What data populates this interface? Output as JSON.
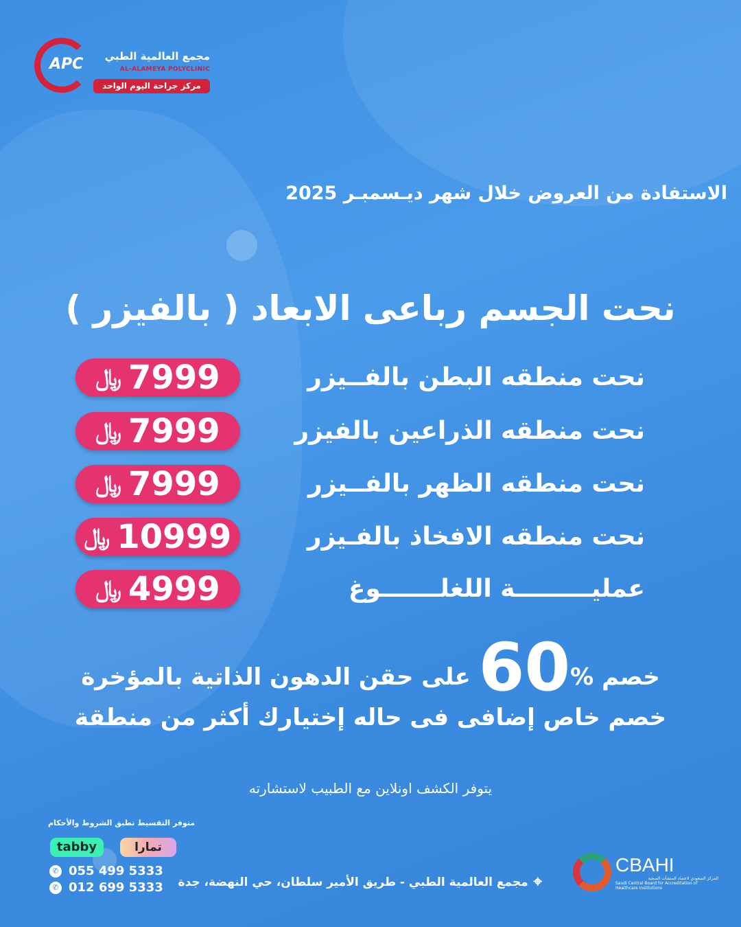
{
  "logo": {
    "abbr": "APC",
    "name_ar": "مجمع العالمية الطبي",
    "name_en": "AL-ALAMEYA POLYCLINIC",
    "tagline": "مركز جراحة اليوم الواحد"
  },
  "offer_period": "الاستفادة من العروض خلال شهر ديـسمبـر 2025",
  "heading": "نحت الجسم رباعى الابعاد ( بالفيزر )",
  "currency_symbol": "﷼",
  "offers": [
    {
      "label": "نحت منطقه البطن بالفــيزر",
      "price": "7999"
    },
    {
      "label": "نحت منطقه الذراعين بالفيزر",
      "price": "7999"
    },
    {
      "label": "نحت منطقه الظهر بالفــيزر",
      "price": "7999"
    },
    {
      "label": "نحت منطقه الافخاذ بالفـيزر",
      "price": "10999"
    },
    {
      "label": "عمليـــــــــة اللغلـــــــوغ",
      "price": "4999"
    }
  ],
  "discount": {
    "prefix": "خصم",
    "percent": "60",
    "percent_sign": "%",
    "suffix": "على حقن الدهون الذاتية بالمؤخرة",
    "extra": "خصم خاص إضافى فى حاله إختيارك أكثر من منطقة"
  },
  "online_note": "يتوفر الكشف اونلاين مع الطبيب لاستشارته",
  "installments": {
    "note": "متوفر التقسيط تطبق الشروط والأحكام",
    "tabby": "tabby",
    "tamara": "تمارا"
  },
  "phones": [
    "055 499 5333",
    "012 699 5333"
  ],
  "address": "مجمع العالمية الطبي - طريق الأمير سلطان، حي النهضة، جدة",
  "cbahi": {
    "name": "CBAHI",
    "sub_ar": "المركز السعودي لاعتماد المنشآت الصحية",
    "sub_en": "Saudi Central Board for Accreditation of Healthcare Institutions"
  },
  "colors": {
    "background": "#3d8fe3",
    "price_pill": "#e5336f",
    "logo_red": "#d3223a"
  }
}
